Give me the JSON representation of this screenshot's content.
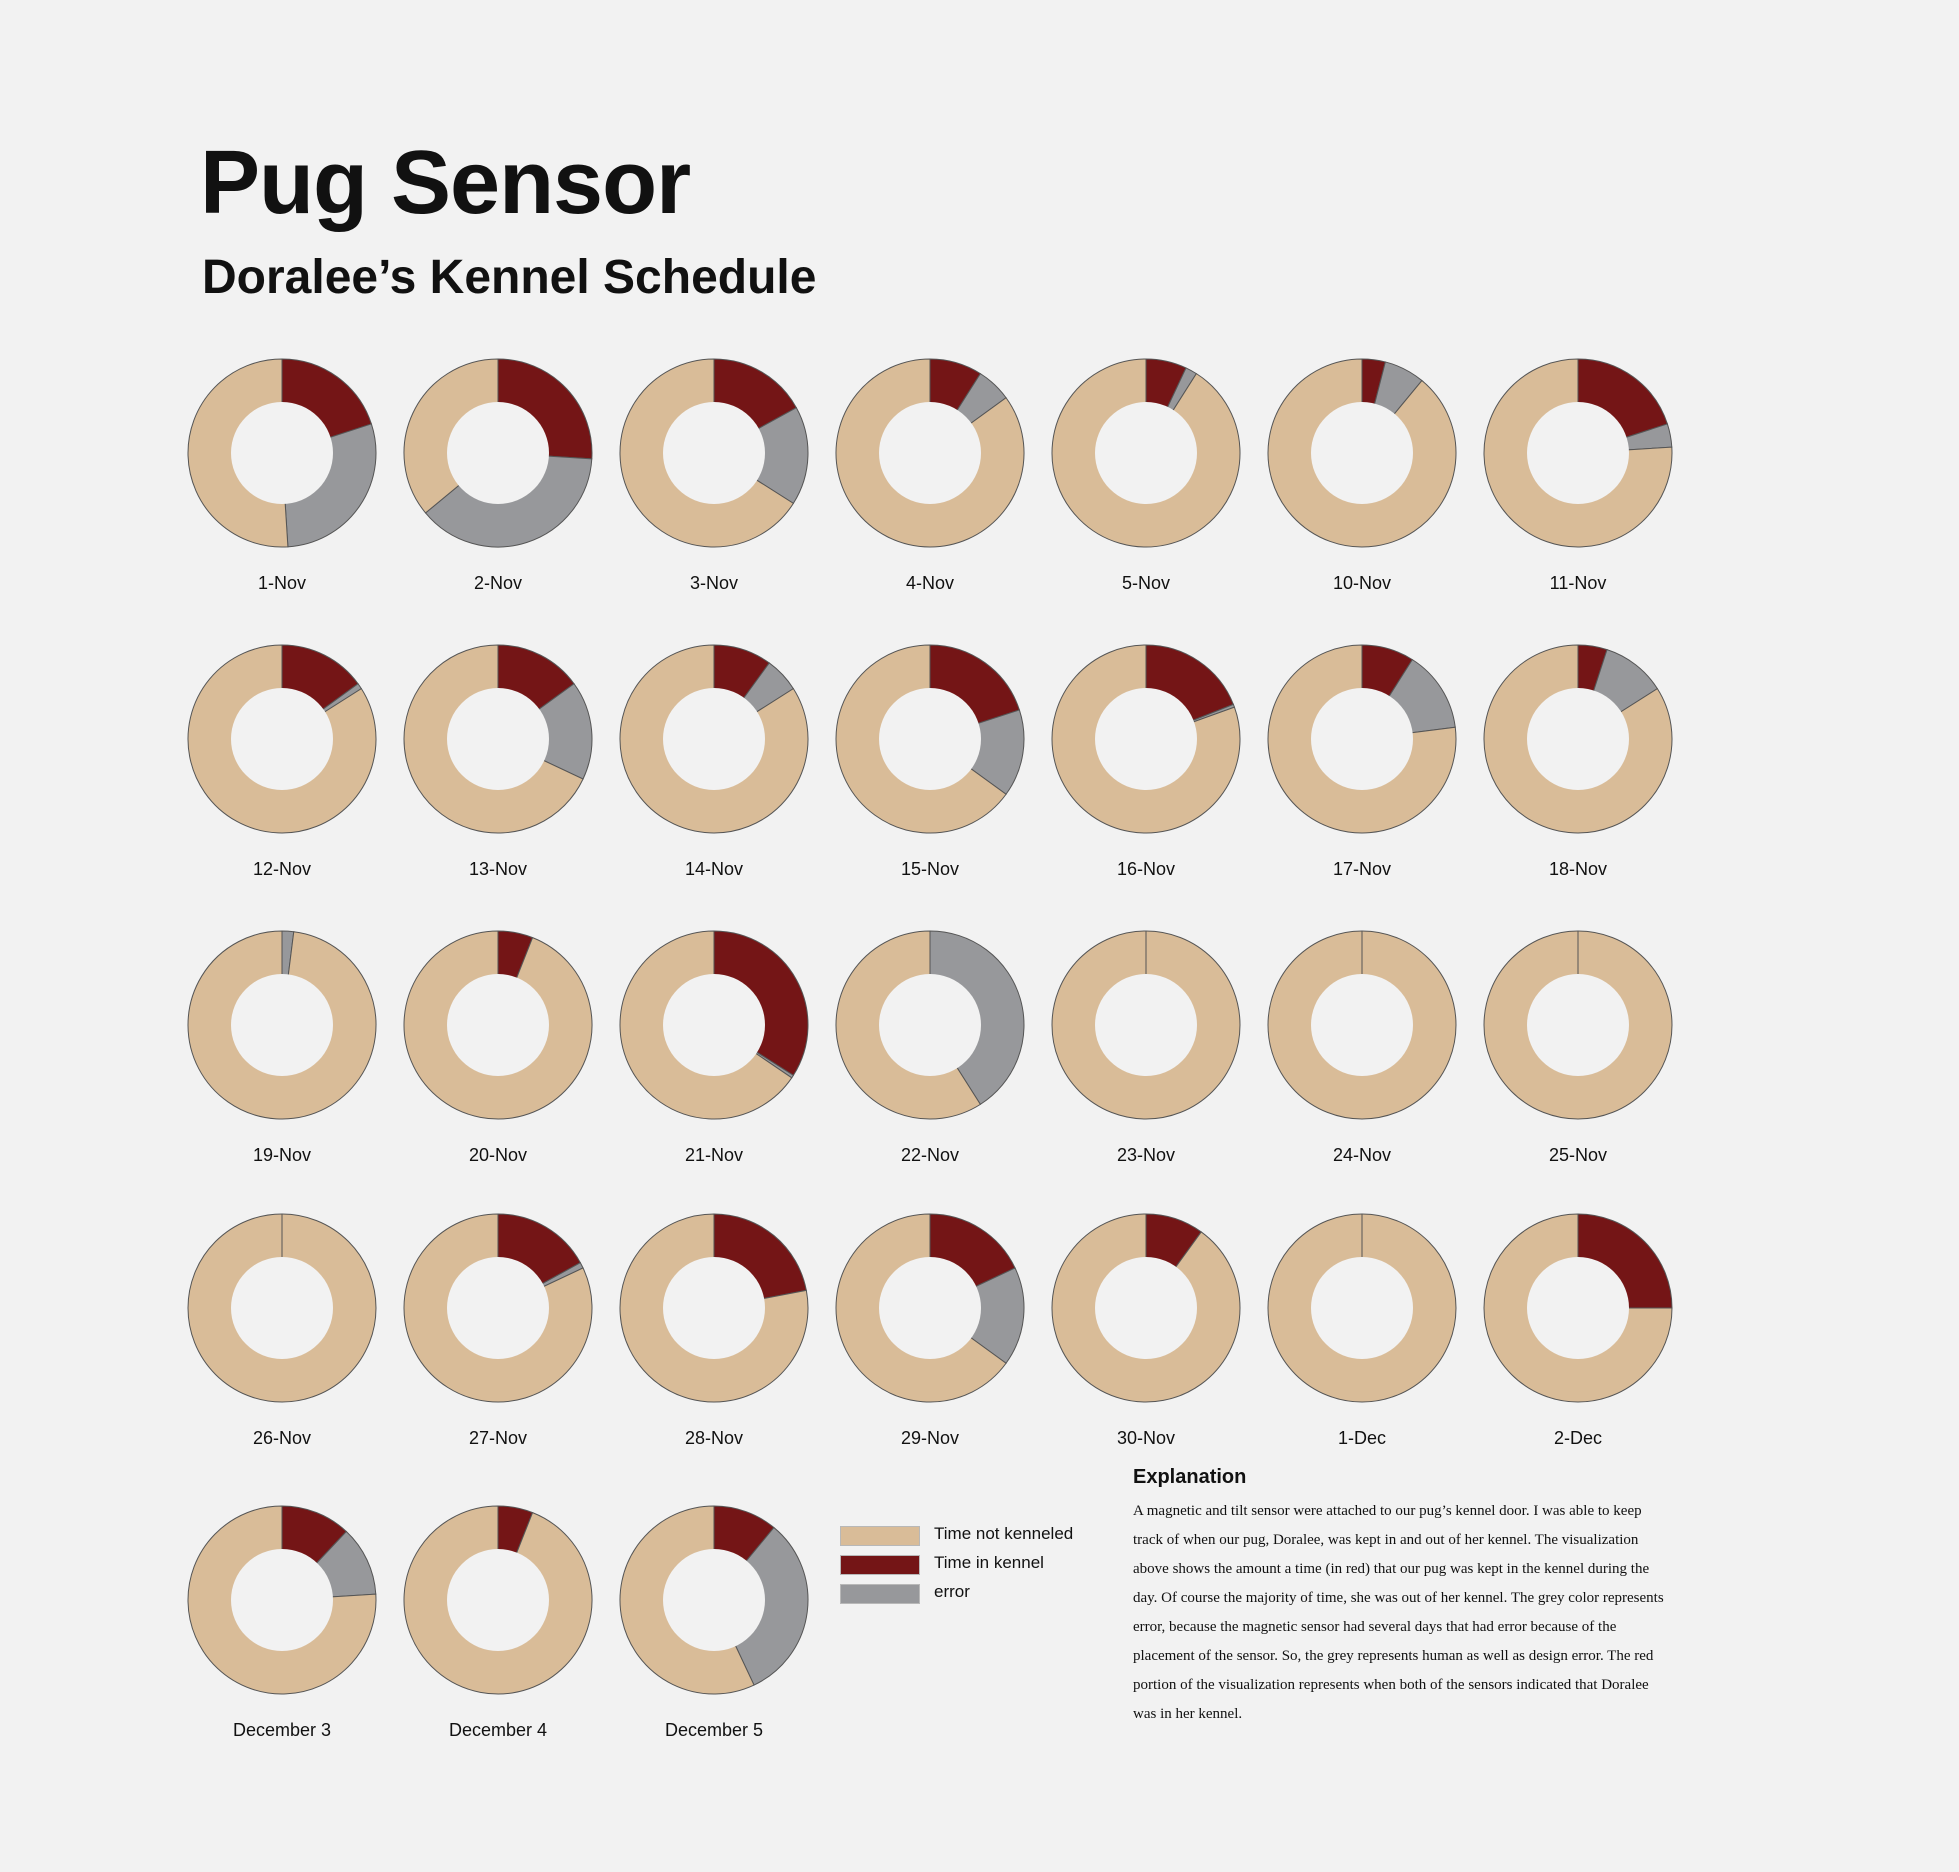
{
  "title": "Pug Sensor",
  "subtitle": "Doralee’s Kennel Schedule",
  "colors": {
    "not_kenneled": "#d9bc98",
    "kennel": "#741516",
    "error": "#97989b",
    "background": "#f2f2f2",
    "stroke": "#555555"
  },
  "legend": [
    {
      "label": "Time not kenneled",
      "color": "#d9bc98"
    },
    {
      "label": "Time in kennel",
      "color": "#741516"
    },
    {
      "label": "error",
      "color": "#97989b"
    }
  ],
  "explanation": {
    "heading": "Explanation",
    "body": "A magnetic and tilt sensor were attached to our pug’s kennel door.  I was able to keep track of when our pug, Doralee, was kept in and out of her kennel.  The visualization above shows the amount a time (in red) that our pug was kept in the kennel during the day.  Of course the majority of time, she was out of her kennel.  The grey color represents error, because the magnetic sensor had several days that had error because of the placement of the sensor.  So, the grey represents human as well as design error.  The red portion of the visualization represents when both of the sensors indicated that Doralee was in her kennel."
  },
  "chart_data": {
    "type": "donut",
    "series_names": [
      "Time in kennel",
      "error",
      "Time not kenneled"
    ],
    "days": [
      {
        "label": "1-Nov",
        "kennel": 0.2,
        "error": 0.29,
        "not_kenneled": 0.51
      },
      {
        "label": "2-Nov",
        "kennel": 0.26,
        "error": 0.38,
        "not_kenneled": 0.36
      },
      {
        "label": "3-Nov",
        "kennel": 0.17,
        "error": 0.17,
        "not_kenneled": 0.66
      },
      {
        "label": "4-Nov",
        "kennel": 0.09,
        "error": 0.06,
        "not_kenneled": 0.85
      },
      {
        "label": "5-Nov",
        "kennel": 0.07,
        "error": 0.02,
        "not_kenneled": 0.91
      },
      {
        "label": "10-Nov",
        "kennel": 0.04,
        "error": 0.07,
        "not_kenneled": 0.89
      },
      {
        "label": "11-Nov",
        "kennel": 0.2,
        "error": 0.04,
        "not_kenneled": 0.76
      },
      {
        "label": "12-Nov",
        "kennel": 0.15,
        "error": 0.01,
        "not_kenneled": 0.84
      },
      {
        "label": "13-Nov",
        "kennel": 0.15,
        "error": 0.17,
        "not_kenneled": 0.68
      },
      {
        "label": "14-Nov",
        "kennel": 0.1,
        "error": 0.06,
        "not_kenneled": 0.84
      },
      {
        "label": "15-Nov",
        "kennel": 0.2,
        "error": 0.15,
        "not_kenneled": 0.65
      },
      {
        "label": "16-Nov",
        "kennel": 0.19,
        "error": 0.005,
        "not_kenneled": 0.805
      },
      {
        "label": "17-Nov",
        "kennel": 0.09,
        "error": 0.14,
        "not_kenneled": 0.77
      },
      {
        "label": "18-Nov",
        "kennel": 0.05,
        "error": 0.11,
        "not_kenneled": 0.84
      },
      {
        "label": "19-Nov",
        "kennel": 0.0,
        "error": 0.02,
        "not_kenneled": 0.98
      },
      {
        "label": "20-Nov",
        "kennel": 0.06,
        "error": 0.0,
        "not_kenneled": 0.94
      },
      {
        "label": "21-Nov",
        "kennel": 0.34,
        "error": 0.005,
        "not_kenneled": 0.655
      },
      {
        "label": "22-Nov",
        "kennel": 0.0,
        "error": 0.41,
        "not_kenneled": 0.59
      },
      {
        "label": "23-Nov",
        "kennel": 0.0,
        "error": 0.0,
        "not_kenneled": 1.0
      },
      {
        "label": "24-Nov",
        "kennel": 0.0,
        "error": 0.0,
        "not_kenneled": 1.0
      },
      {
        "label": "25-Nov",
        "kennel": 0.0,
        "error": 0.0,
        "not_kenneled": 1.0
      },
      {
        "label": "26-Nov",
        "kennel": 0.0,
        "error": 0.0,
        "not_kenneled": 1.0
      },
      {
        "label": "27-Nov",
        "kennel": 0.17,
        "error": 0.01,
        "not_kenneled": 0.82
      },
      {
        "label": "28-Nov",
        "kennel": 0.22,
        "error": 0.0,
        "not_kenneled": 0.78
      },
      {
        "label": "29-Nov",
        "kennel": 0.18,
        "error": 0.17,
        "not_kenneled": 0.65
      },
      {
        "label": "30-Nov",
        "kennel": 0.1,
        "error": 0.0,
        "not_kenneled": 0.9
      },
      {
        "label": "1-Dec",
        "kennel": 0.0,
        "error": 0.0,
        "not_kenneled": 1.0
      },
      {
        "label": "2-Dec",
        "kennel": 0.25,
        "error": 0.0,
        "not_kenneled": 0.75
      },
      {
        "label": "December 3",
        "kennel": 0.12,
        "error": 0.12,
        "not_kenneled": 0.76
      },
      {
        "label": "December 4",
        "kennel": 0.06,
        "error": 0.0,
        "not_kenneled": 0.94
      },
      {
        "label": "December 5",
        "kennel": 0.11,
        "error": 0.32,
        "not_kenneled": 0.57
      }
    ]
  }
}
